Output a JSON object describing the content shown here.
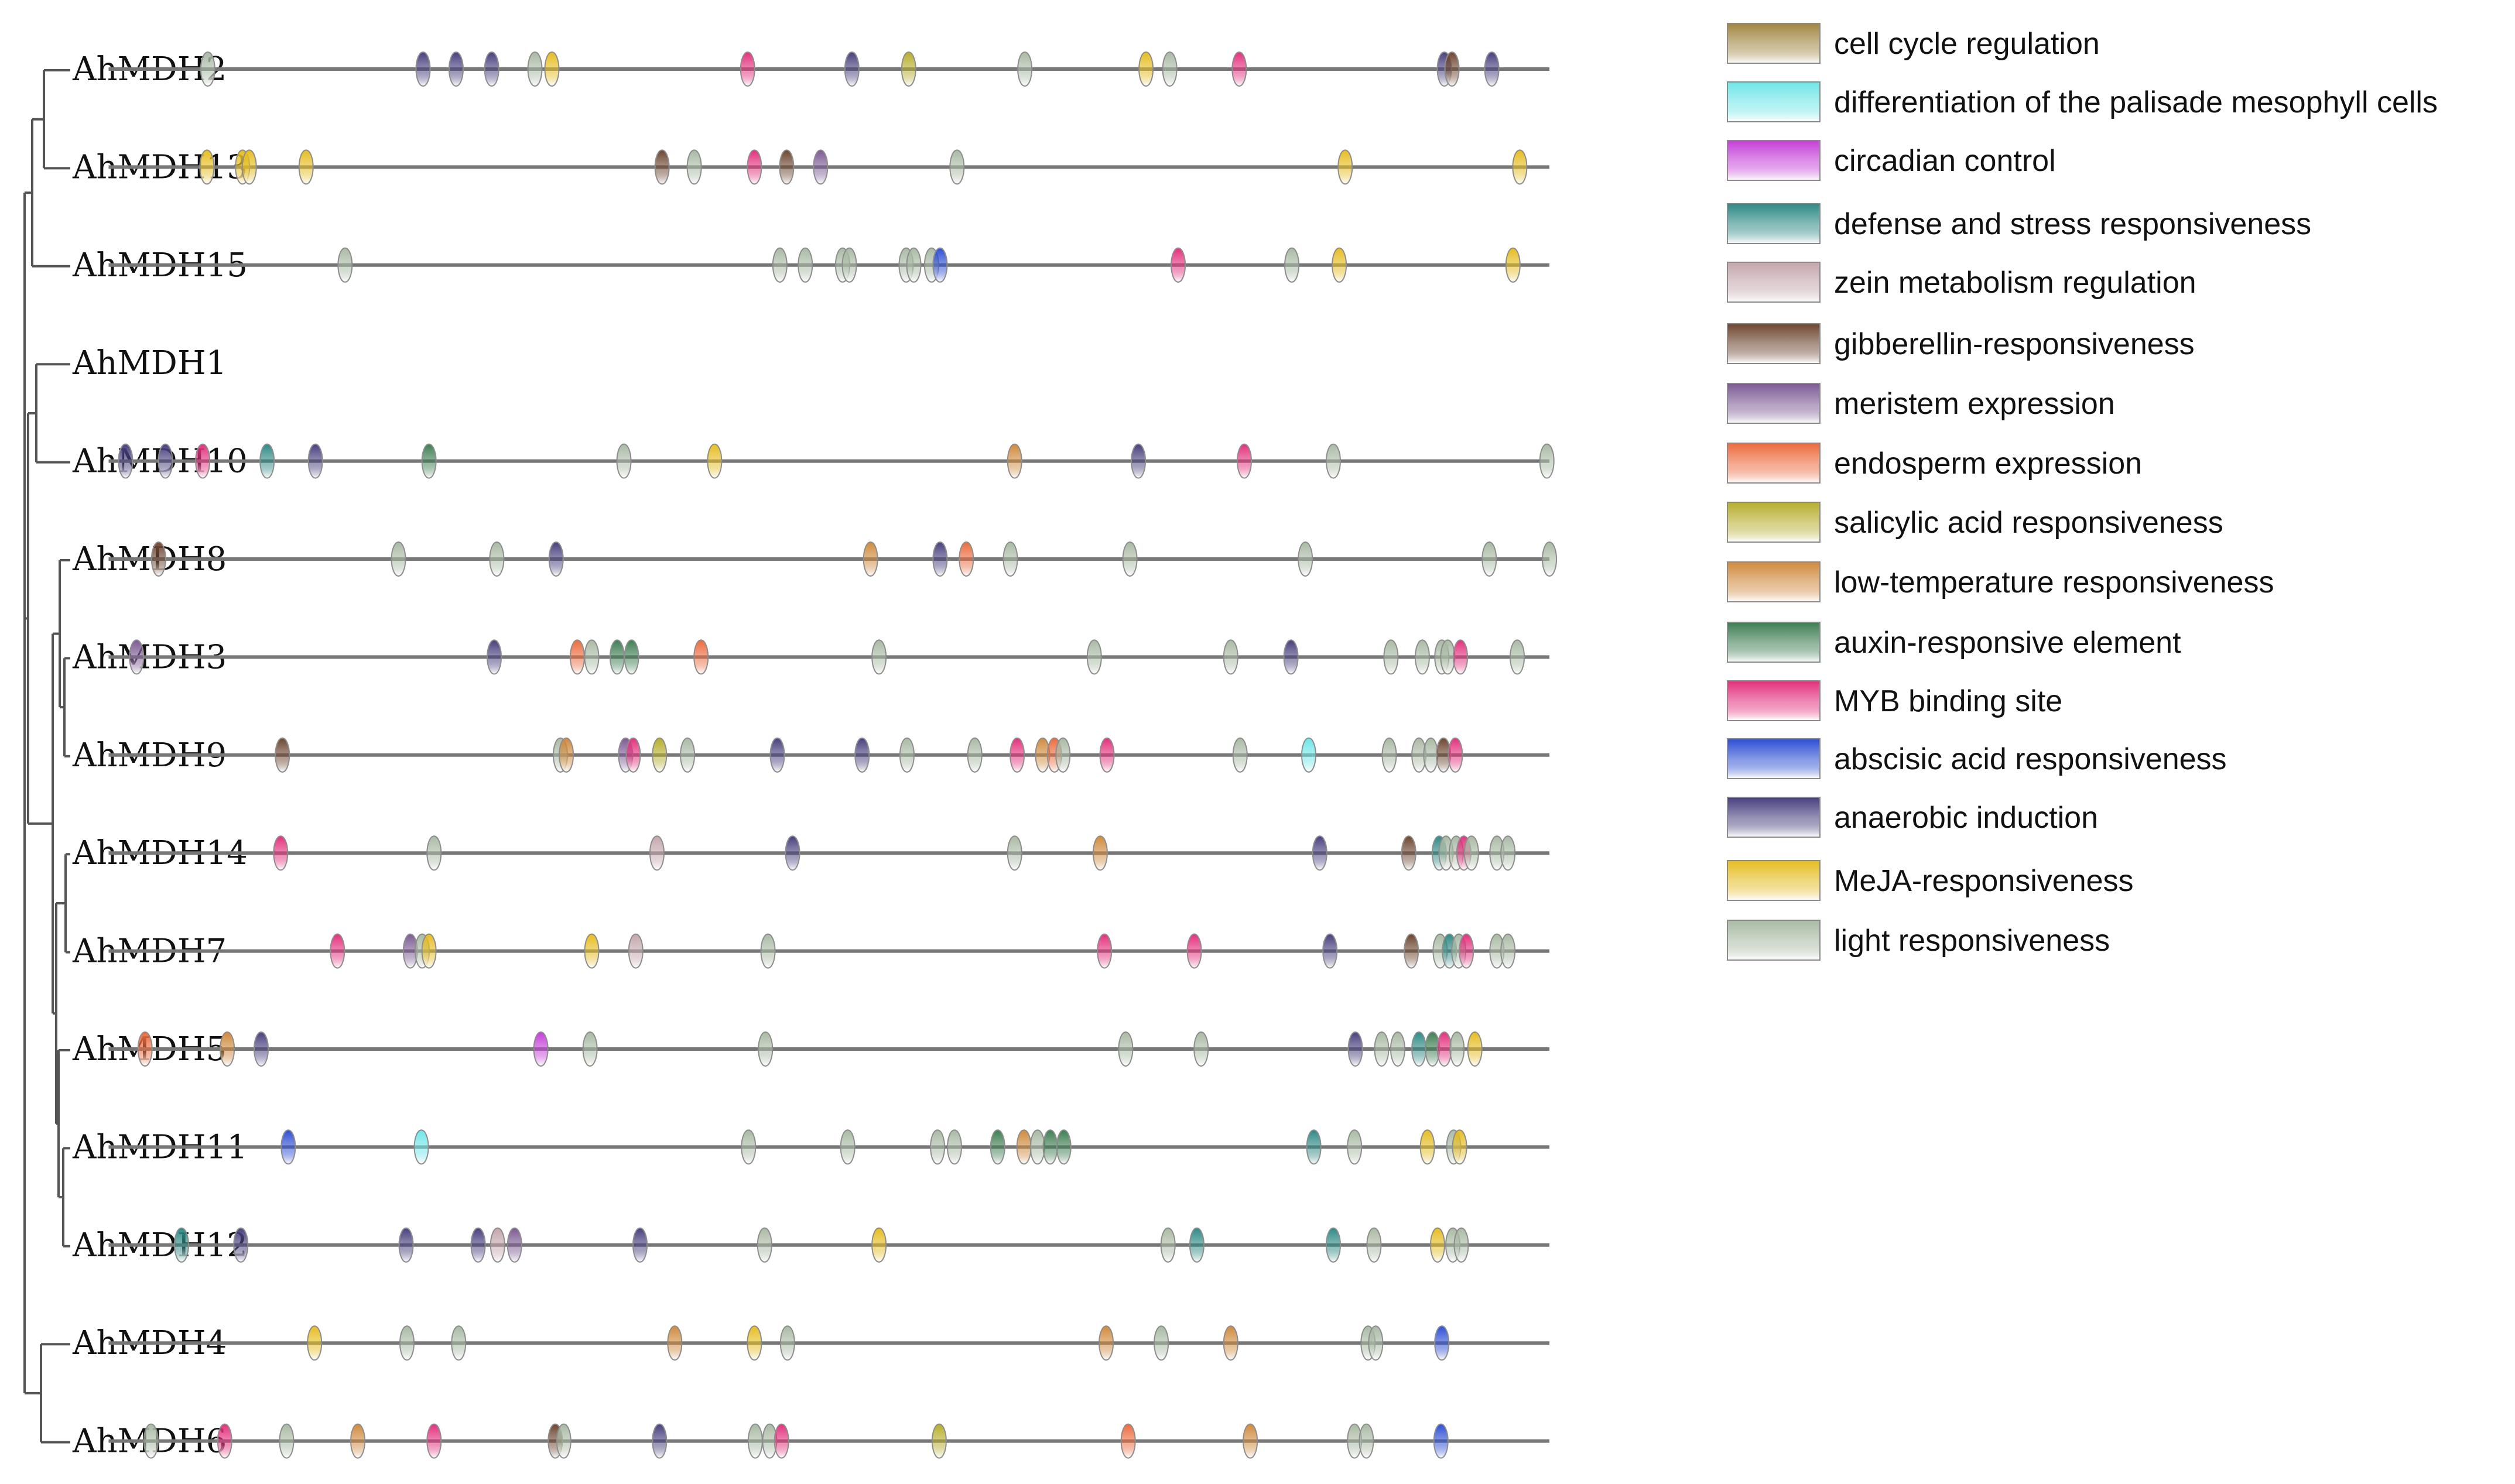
{
  "elements": [
    {
      "name": "cell cycle regulation",
      "color": "#a08640"
    },
    {
      "name": "differentiation of the palisade mesophyll cells",
      "color": "#6fe6e8"
    },
    {
      "name": "circadian control",
      "color": "#c53fd8"
    },
    {
      "name": "defense and stress responsiveness",
      "color": "#2e8a86"
    },
    {
      "name": "zein metabolism regulation",
      "color": "#c4a6ac"
    },
    {
      "name": "gibberellin-responsiveness",
      "color": "#6e4630"
    },
    {
      "name": "meristem expression",
      "color": "#7c5a94"
    },
    {
      "name": "endosperm expression",
      "color": "#ec6b3d"
    },
    {
      "name": "salicylic acid responsiveness",
      "color": "#b7ae2c"
    },
    {
      "name": "low-temperature responsiveness",
      "color": "#d08a3c"
    },
    {
      "name": "auxin-responsive element",
      "color": "#3e7e52"
    },
    {
      "name": "MYB binding site",
      "color": "#e3317d"
    },
    {
      "name": "abscisic acid responsiveness",
      "color": "#2d4fd4"
    },
    {
      "name": "anaerobic induction",
      "color": "#47407e"
    },
    {
      "name": "MeJA-responsiveness",
      "color": "#e6bd20"
    },
    {
      "name": "light responsiveness",
      "color": "#a9baa4"
    }
  ],
  "genes": [
    {
      "name": "AhMDH2",
      "line": [
        0.2,
        1.9
      ],
      "elements": [
        [
          0.317,
          15
        ],
        [
          0.571,
          13
        ],
        [
          0.61,
          13
        ],
        [
          0.652,
          13
        ],
        [
          0.703,
          15
        ],
        [
          0.723,
          14
        ],
        [
          0.954,
          11
        ],
        [
          1.077,
          13
        ],
        [
          1.144,
          8
        ],
        [
          1.281,
          15
        ],
        [
          1.424,
          14
        ],
        [
          1.452,
          15
        ],
        [
          1.534,
          11
        ],
        [
          1.776,
          13
        ],
        [
          1.785,
          5
        ],
        [
          1.832,
          13
        ]
      ]
    },
    {
      "name": "AhMDH13",
      "line": [
        0.2,
        1.9
      ],
      "elements": [
        [
          0.316,
          14
        ],
        [
          0.358,
          14
        ],
        [
          0.366,
          14
        ],
        [
          0.433,
          14
        ],
        [
          0.853,
          5
        ],
        [
          0.891,
          15
        ],
        [
          0.962,
          11
        ],
        [
          1.0,
          5
        ],
        [
          1.04,
          6
        ],
        [
          1.201,
          15
        ],
        [
          1.659,
          14
        ],
        [
          1.865,
          14
        ]
      ]
    },
    {
      "name": "AhMDH15",
      "line": [
        0.2,
        1.9
      ],
      "elements": [
        [
          0.479,
          15
        ],
        [
          0.992,
          15
        ],
        [
          1.022,
          15
        ],
        [
          1.066,
          15
        ],
        [
          1.074,
          15
        ],
        [
          1.141,
          15
        ],
        [
          1.15,
          15
        ],
        [
          1.171,
          15
        ],
        [
          1.181,
          12
        ],
        [
          1.462,
          11
        ],
        [
          1.596,
          15
        ],
        [
          1.652,
          14
        ],
        [
          1.857,
          14
        ]
      ]
    },
    {
      "name": "AhMDH1",
      "line": null,
      "elements": []
    },
    {
      "name": "AhMDH10",
      "line": [
        0.2,
        1.9
      ],
      "elements": [
        [
          0.22,
          13
        ],
        [
          0.267,
          13
        ],
        [
          0.311,
          11
        ],
        [
          0.387,
          3
        ],
        [
          0.444,
          13
        ],
        [
          0.578,
          10
        ],
        [
          0.808,
          15
        ],
        [
          0.915,
          14
        ],
        [
          1.269,
          9
        ],
        [
          1.415,
          13
        ],
        [
          1.54,
          11
        ],
        [
          1.645,
          15
        ],
        [
          1.897,
          15
        ]
      ]
    },
    {
      "name": "AhMDH8",
      "line": [
        0.2,
        1.9
      ],
      "elements": [
        [
          0.259,
          5
        ],
        [
          0.542,
          15
        ],
        [
          0.658,
          15
        ],
        [
          0.728,
          13
        ],
        [
          1.099,
          9
        ],
        [
          1.181,
          13
        ],
        [
          1.212,
          7
        ],
        [
          1.264,
          15
        ],
        [
          1.405,
          15
        ],
        [
          1.612,
          15
        ],
        [
          1.829,
          15
        ],
        [
          1.9,
          15
        ]
      ]
    },
    {
      "name": "AhMDH3",
      "line": [
        0.2,
        1.9
      ],
      "elements": [
        [
          0.233,
          6
        ],
        [
          0.655,
          13
        ],
        [
          0.753,
          7
        ],
        [
          0.77,
          15
        ],
        [
          0.8,
          10
        ],
        [
          0.817,
          10
        ],
        [
          0.899,
          7
        ],
        [
          1.109,
          15
        ],
        [
          1.363,
          15
        ],
        [
          1.524,
          15
        ],
        [
          1.595,
          13
        ],
        [
          1.713,
          15
        ],
        [
          1.75,
          15
        ],
        [
          1.773,
          15
        ],
        [
          1.78,
          15
        ],
        [
          1.795,
          11
        ],
        [
          1.862,
          15
        ]
      ]
    },
    {
      "name": "AhMDH9",
      "line": [
        0.2,
        1.9
      ],
      "elements": [
        [
          0.405,
          5
        ],
        [
          0.733,
          15
        ],
        [
          0.74,
          9
        ],
        [
          0.81,
          6
        ],
        [
          0.819,
          11
        ],
        [
          0.85,
          8
        ],
        [
          0.883,
          15
        ],
        [
          0.989,
          13
        ],
        [
          1.089,
          13
        ],
        [
          1.142,
          15
        ],
        [
          1.222,
          15
        ],
        [
          1.272,
          11
        ],
        [
          1.302,
          9
        ],
        [
          1.316,
          7
        ],
        [
          1.326,
          15
        ],
        [
          1.378,
          11
        ],
        [
          1.535,
          15
        ],
        [
          1.616,
          1
        ],
        [
          1.711,
          15
        ],
        [
          1.746,
          15
        ],
        [
          1.76,
          15
        ],
        [
          1.775,
          5
        ],
        [
          1.789,
          11
        ]
      ]
    },
    {
      "name": "AhMDH14",
      "line": [
        0.2,
        1.9
      ],
      "elements": [
        [
          0.403,
          11
        ],
        [
          0.584,
          15
        ],
        [
          0.847,
          4
        ],
        [
          1.007,
          13
        ],
        [
          1.269,
          15
        ],
        [
          1.37,
          9
        ],
        [
          1.629,
          13
        ],
        [
          1.734,
          5
        ],
        [
          1.77,
          3
        ],
        [
          1.778,
          15
        ],
        [
          1.79,
          15
        ],
        [
          1.799,
          11
        ],
        [
          1.808,
          15
        ],
        [
          1.838,
          15
        ],
        [
          1.851,
          15
        ]
      ]
    },
    {
      "name": "AhMDH7",
      "line": [
        0.2,
        1.9
      ],
      "elements": [
        [
          0.47,
          11
        ],
        [
          0.556,
          6
        ],
        [
          0.57,
          15
        ],
        [
          0.578,
          14
        ],
        [
          0.77,
          14
        ],
        [
          0.822,
          4
        ],
        [
          0.978,
          15
        ],
        [
          1.375,
          11
        ],
        [
          1.481,
          11
        ],
        [
          1.641,
          13
        ],
        [
          1.737,
          5
        ],
        [
          1.771,
          15
        ],
        [
          1.782,
          3
        ],
        [
          1.793,
          15
        ],
        [
          1.802,
          11
        ],
        [
          1.838,
          15
        ],
        [
          1.851,
          15
        ]
      ]
    },
    {
      "name": "AhMDH5",
      "line": [
        0.2,
        1.9
      ],
      "elements": [
        [
          0.243,
          7
        ],
        [
          0.34,
          9
        ],
        [
          0.38,
          13
        ],
        [
          0.71,
          2
        ],
        [
          0.768,
          15
        ],
        [
          0.975,
          15
        ],
        [
          1.4,
          15
        ],
        [
          1.489,
          15
        ],
        [
          1.671,
          13
        ],
        [
          1.702,
          15
        ],
        [
          1.721,
          15
        ],
        [
          1.746,
          3
        ],
        [
          1.762,
          10
        ],
        [
          1.776,
          11
        ],
        [
          1.791,
          15
        ],
        [
          1.812,
          14
        ]
      ]
    },
    {
      "name": "AhMDH11",
      "line": [
        0.2,
        1.9
      ],
      "elements": [
        [
          0.412,
          12
        ],
        [
          0.569,
          1
        ],
        [
          0.955,
          15
        ],
        [
          1.072,
          15
        ],
        [
          1.178,
          15
        ],
        [
          1.198,
          15
        ],
        [
          1.249,
          10
        ],
        [
          1.28,
          9
        ],
        [
          1.296,
          15
        ],
        [
          1.311,
          10
        ],
        [
          1.327,
          10
        ],
        [
          1.622,
          3
        ],
        [
          1.67,
          15
        ],
        [
          1.756,
          14
        ],
        [
          1.787,
          15
        ],
        [
          1.794,
          14
        ]
      ]
    },
    {
      "name": "AhMDH12",
      "line": [
        0.2,
        1.9
      ],
      "elements": [
        [
          0.286,
          3
        ],
        [
          0.356,
          13
        ],
        [
          0.551,
          13
        ],
        [
          0.636,
          13
        ],
        [
          0.659,
          4
        ],
        [
          0.679,
          6
        ],
        [
          0.827,
          13
        ],
        [
          0.974,
          15
        ],
        [
          1.109,
          14
        ],
        [
          1.45,
          15
        ],
        [
          1.484,
          3
        ],
        [
          1.645,
          3
        ],
        [
          1.693,
          15
        ],
        [
          1.768,
          14
        ],
        [
          1.786,
          15
        ],
        [
          1.796,
          15
        ]
      ]
    },
    {
      "name": "AhMDH4",
      "line": [
        0.2,
        1.9
      ],
      "elements": [
        [
          0.443,
          14
        ],
        [
          0.552,
          15
        ],
        [
          0.613,
          15
        ],
        [
          0.868,
          9
        ],
        [
          0.962,
          14
        ],
        [
          1.001,
          15
        ],
        [
          1.377,
          9
        ],
        [
          1.442,
          15
        ],
        [
          1.524,
          9
        ],
        [
          1.686,
          15
        ],
        [
          1.695,
          15
        ],
        [
          1.773,
          12
        ]
      ]
    },
    {
      "name": "AhMDH6",
      "line": [
        0.2,
        1.9
      ],
      "elements": [
        [
          0.25,
          15
        ],
        [
          0.337,
          11
        ],
        [
          0.41,
          15
        ],
        [
          0.494,
          9
        ],
        [
          0.584,
          11
        ],
        [
          0.727,
          5
        ],
        [
          0.737,
          15
        ],
        [
          0.85,
          13
        ],
        [
          0.963,
          15
        ],
        [
          0.98,
          15
        ],
        [
          0.994,
          11
        ],
        [
          1.18,
          8
        ],
        [
          1.403,
          7
        ],
        [
          1.547,
          9
        ],
        [
          1.67,
          15
        ],
        [
          1.684,
          15
        ],
        [
          1.772,
          12
        ]
      ]
    }
  ]
}
